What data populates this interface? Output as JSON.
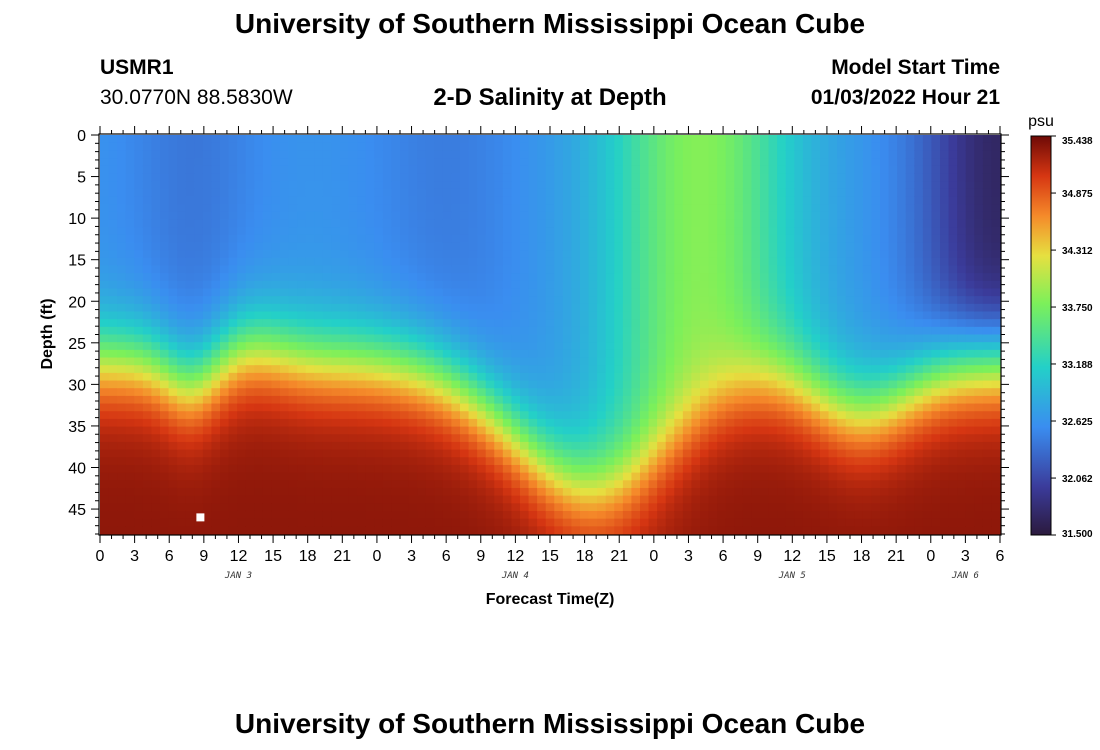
{
  "header": {
    "title": "University of Southern Mississippi Ocean Cube",
    "station": "USMR1",
    "coords": "30.0770N  88.5830W",
    "subtitle": "2-D Salinity at Depth",
    "model_start_label": "Model Start Time",
    "model_start_value": "01/03/2022 Hour 21",
    "footer_title": "University of Southern Mississippi Ocean Cube"
  },
  "chart_data": {
    "type": "heatmap",
    "title": "2-D Salinity at Depth",
    "xlabel": "Forecast Time(Z)",
    "ylabel": "Depth (ft)",
    "x_hours": [
      0,
      78
    ],
    "xlim": [
      0,
      78
    ],
    "ylim": [
      0,
      48
    ],
    "y_inverted": true,
    "x_tick_labels": [
      "0",
      "3",
      "6",
      "9",
      "12",
      "15",
      "18",
      "21",
      "0",
      "3",
      "6",
      "9",
      "12",
      "15",
      "18",
      "21",
      "0",
      "3",
      "6",
      "9",
      "12",
      "15",
      "18",
      "21",
      "0",
      "3",
      "6"
    ],
    "x_tick_step_hours": 3,
    "day_labels": [
      {
        "label": "JAN 3",
        "hour": 12
      },
      {
        "label": "JAN 4",
        "hour": 36
      },
      {
        "label": "JAN 5",
        "hour": 60
      },
      {
        "label": "JAN 6",
        "hour": 75
      }
    ],
    "y_ticks": [
      0,
      5,
      10,
      15,
      20,
      25,
      30,
      35,
      40,
      45
    ],
    "colorbar": {
      "unit": "psu",
      "min": 31.5,
      "max": 35.438,
      "tick_labels": [
        "35.438",
        "34.875",
        "34.312",
        "33.750",
        "33.188",
        "32.625",
        "32.062",
        "31.500"
      ]
    },
    "marker": {
      "hour": 8.7,
      "depth": 46
    }
  }
}
